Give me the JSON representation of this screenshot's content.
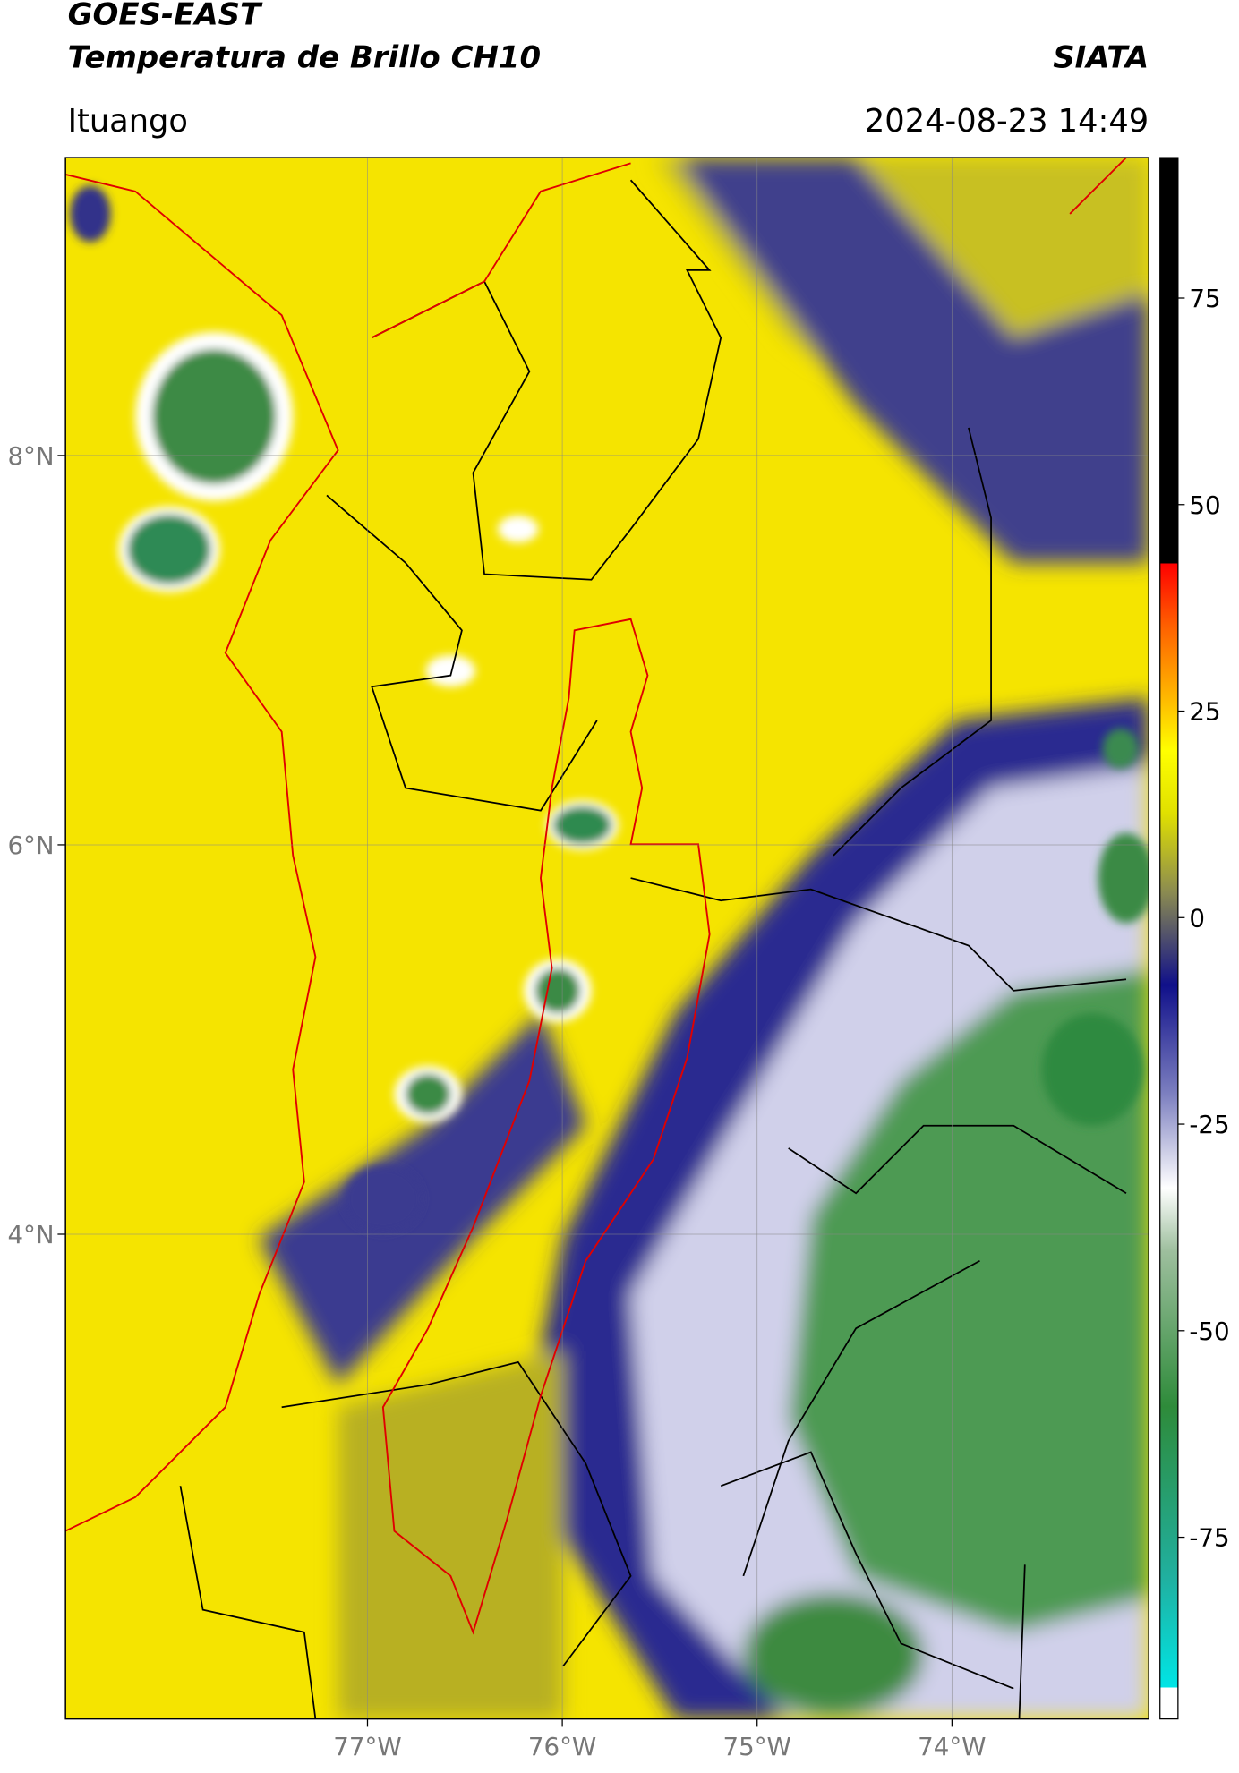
{
  "header": {
    "title_lines": [
      "GOES-EAST",
      "Temperatura de Brillo CH10"
    ],
    "org": "SIATA",
    "location": "Ituango",
    "datetime": "2024-08-23 14:49"
  },
  "map": {
    "xlim": [
      -78.55,
      -72.99
    ],
    "ylim": [
      1.51,
      9.53
    ],
    "xticks": [
      {
        "value": -77,
        "label": "77°W"
      },
      {
        "value": -76,
        "label": "76°W"
      },
      {
        "value": -75,
        "label": "75°W"
      },
      {
        "value": -74,
        "label": "74°W"
      }
    ],
    "yticks": [
      {
        "value": 8,
        "label": "8°N"
      },
      {
        "value": 6,
        "label": "6°N"
      },
      {
        "value": 4,
        "label": "4°N"
      }
    ]
  },
  "colorbar": {
    "lim": [
      -97,
      92
    ],
    "ticks": [
      75,
      50,
      25,
      0,
      -25,
      -50,
      -75
    ]
  }
}
